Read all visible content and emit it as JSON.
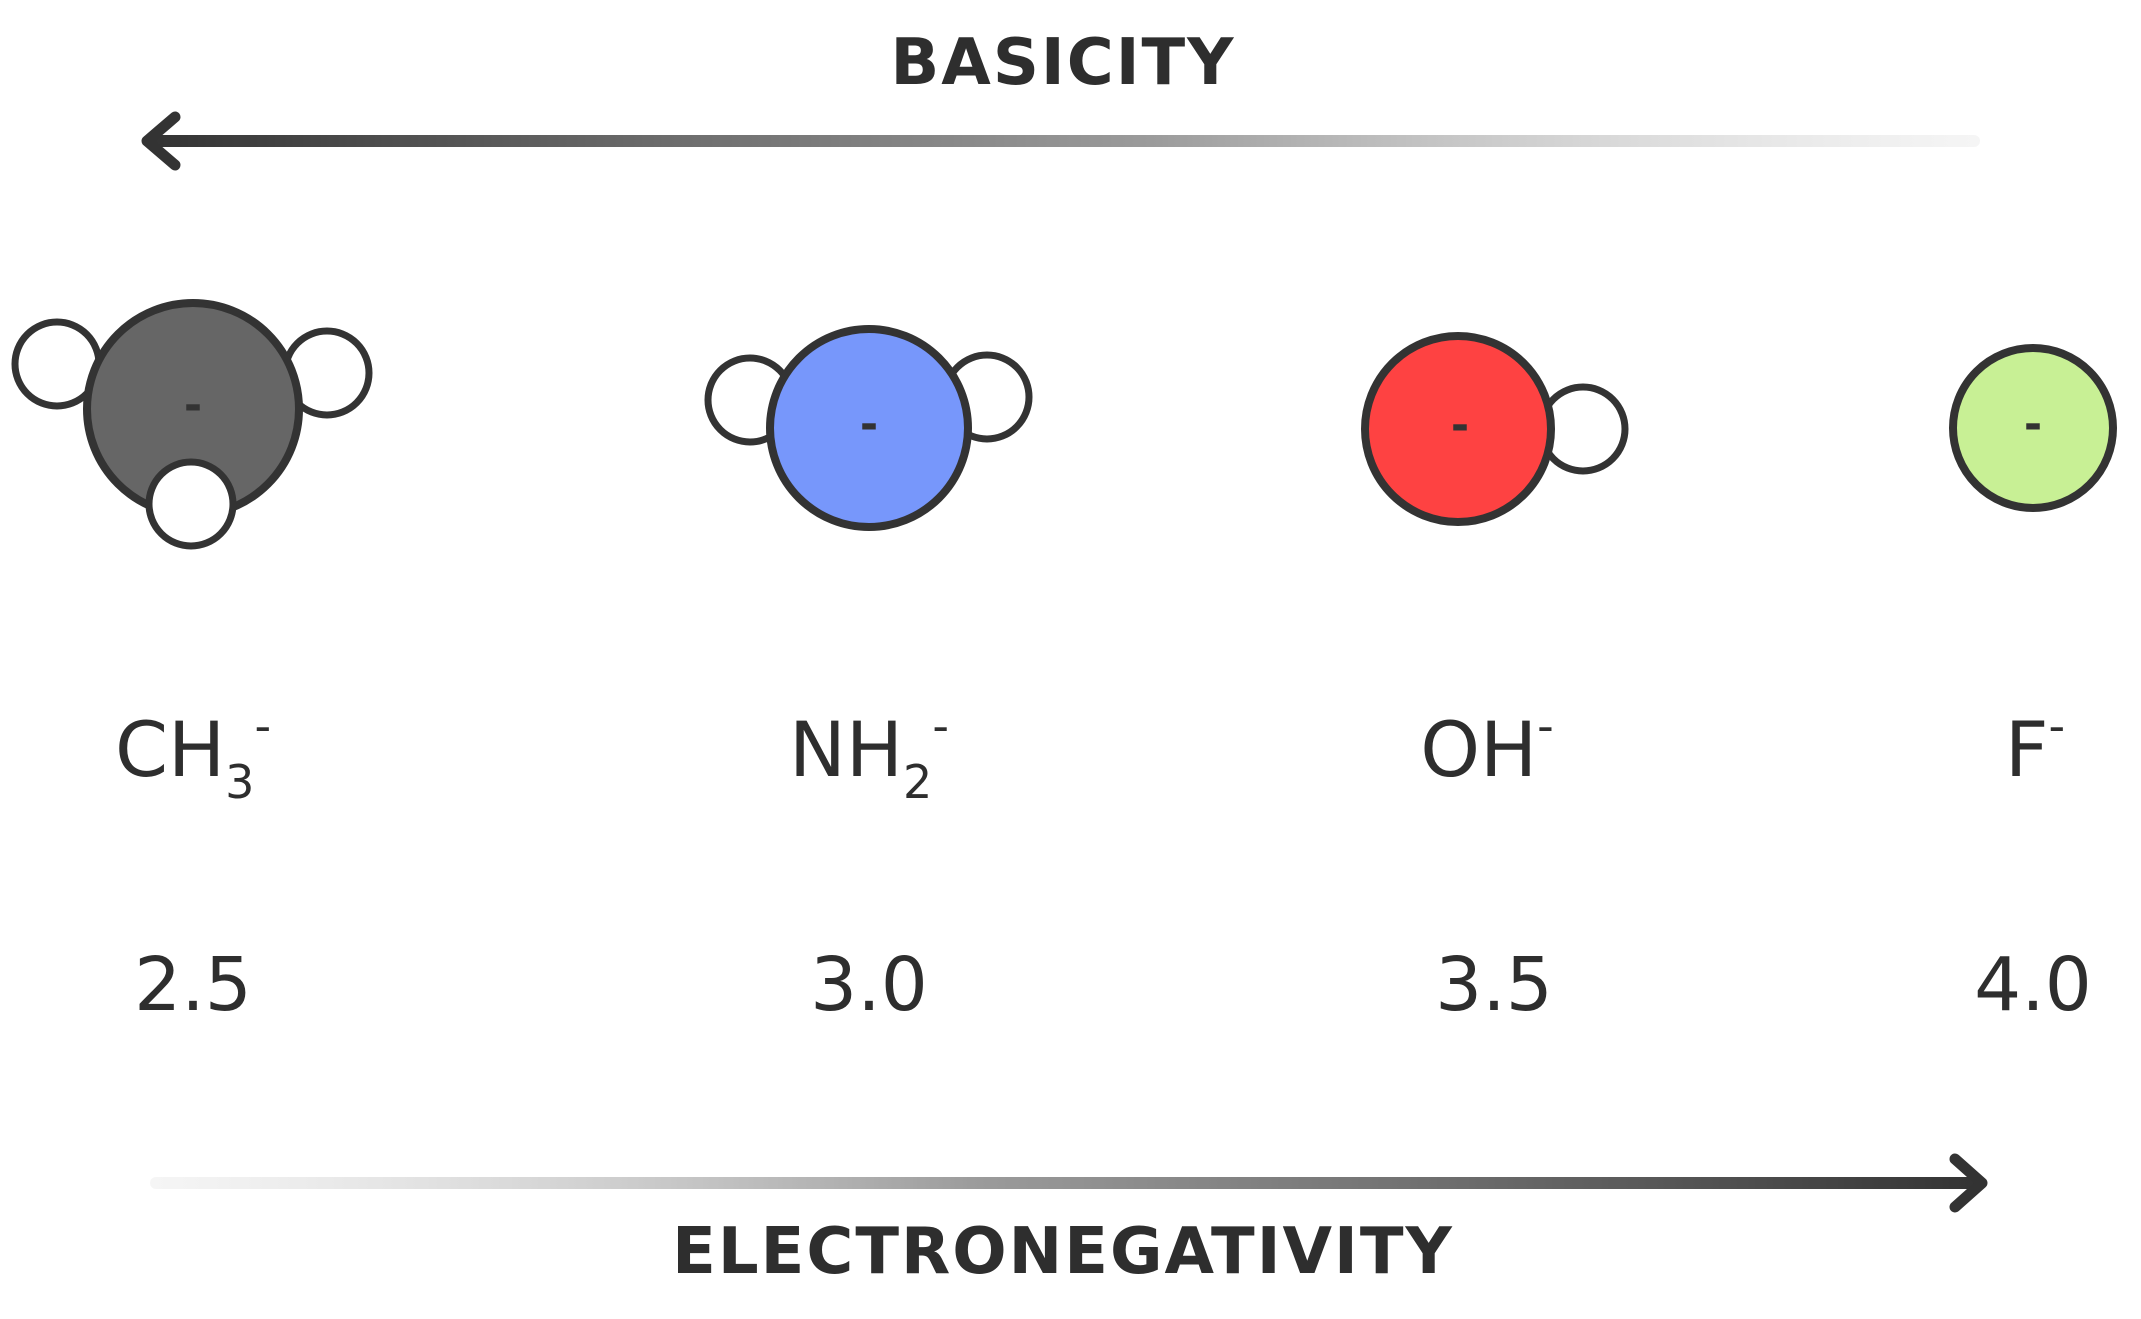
{
  "top_label": "BASICITY",
  "bottom_label": "ELECTRONEGATIVITY",
  "colors": {
    "outline": "#333333",
    "carbon": "#666666",
    "nitrogen": "#7797fb",
    "oxygen": "#fe4242",
    "fluorine": "#c8f095",
    "hydrogen": "#ffffff"
  },
  "species": [
    {
      "base": "CH",
      "sub": "3",
      "sup": "-",
      "center_charge": "-",
      "electronegativity": "2.5",
      "color_key": "carbon"
    },
    {
      "base": "NH",
      "sub": "2",
      "sup": "-",
      "center_charge": "-",
      "electronegativity": "3.0",
      "color_key": "nitrogen"
    },
    {
      "base": "OH",
      "sub": "",
      "sup": "-",
      "center_charge": "-",
      "electronegativity": "3.5",
      "color_key": "oxygen"
    },
    {
      "base": "F",
      "sub": "",
      "sup": "-",
      "center_charge": "-",
      "electronegativity": "4.0",
      "color_key": "fluorine"
    }
  ]
}
